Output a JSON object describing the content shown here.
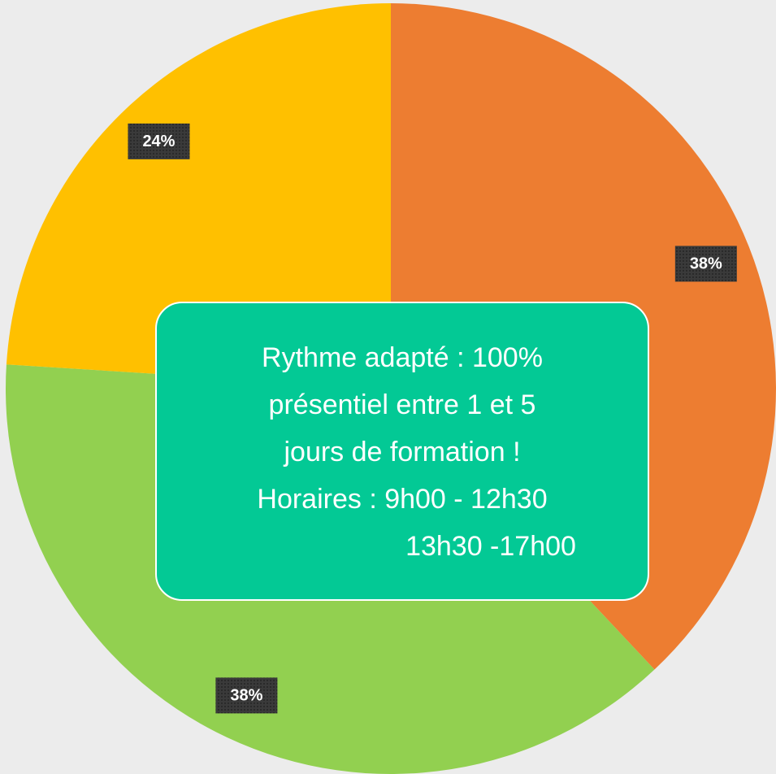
{
  "chart_data": {
    "type": "pie",
    "values": [
      38,
      38,
      24
    ],
    "value_labels": [
      "38%",
      "38%",
      "24%"
    ],
    "colors": [
      "#ed7d31",
      "#92d050",
      "#ffc000"
    ],
    "annotation": [
      "Rythme adapté : 100%",
      "présentiel entre 1 et 5",
      "jours de formation !",
      "Horaires : 9h00 - 12h30",
      "13h30 -17h00"
    ]
  }
}
